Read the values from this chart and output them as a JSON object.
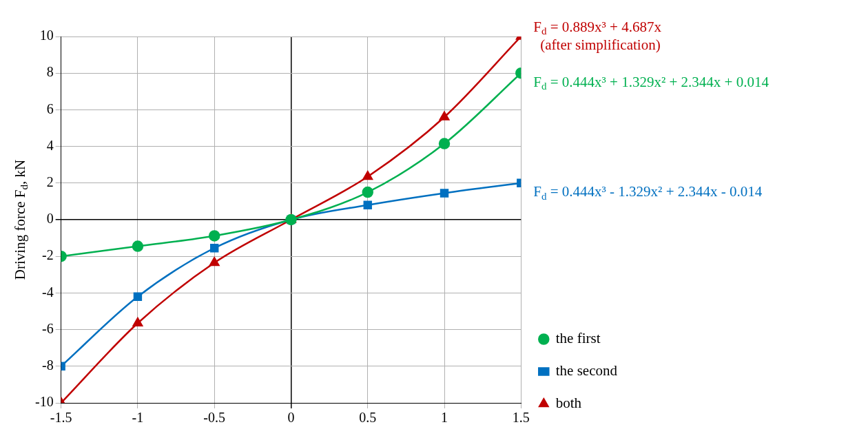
{
  "chart_data": {
    "type": "line",
    "ylabel": "Driving force F$_{d}$, kN",
    "x": [
      -1.5,
      -1,
      -0.5,
      0,
      0.5,
      1,
      1.5
    ],
    "series": [
      {
        "name": "the first",
        "color": "#00b050",
        "marker": "circle",
        "values": [
          -2,
          -1.45,
          -0.88,
          0,
          1.5,
          4.15,
          8
        ]
      },
      {
        "name": "the second",
        "color": "#0070c0",
        "marker": "square",
        "values": [
          -8,
          -4.2,
          -1.55,
          0,
          0.8,
          1.45,
          2
        ]
      },
      {
        "name": "both",
        "color": "#c00000",
        "marker": "triangle",
        "values": [
          -10,
          -5.65,
          -2.35,
          0,
          2.35,
          5.6,
          10
        ]
      }
    ],
    "annotations": [
      "F$_{d}$ = 0.889x³ + 4.687x\n(after simplification)",
      "F$_{d}$ = 0.444x³ + 1.329x² + 2.344x + 0.014",
      "F$_{d}$ = 0.444x³ - 1.329x² + 2.344x - 0.014"
    ],
    "xlim": [
      -1.5,
      1.5
    ],
    "xticks": [
      -1.5,
      -1,
      -0.5,
      0,
      0.5,
      1,
      1.5
    ],
    "ylim": [
      -10,
      10
    ],
    "yticks": [
      -10,
      -8,
      -6,
      -4,
      -2,
      0,
      2,
      4,
      6,
      8,
      10
    ],
    "grid": true,
    "legend": "right",
    "line_style": "solid"
  }
}
